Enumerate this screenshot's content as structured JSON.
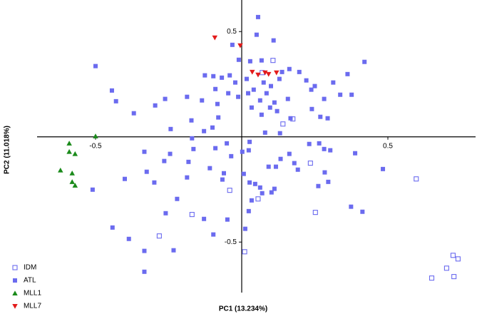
{
  "chart_data": {
    "type": "scatter",
    "x_label": "PC1 (13.234%)",
    "y_label": "PC2 (11.018%)",
    "xlim": [
      -0.7,
      0.8
    ],
    "ylim": [
      -0.74,
      0.65
    ],
    "xticks": [
      -0.5,
      0.5
    ],
    "yticks": [
      -0.5,
      0.5
    ],
    "axes_cross_at_zero": true,
    "legend": "bottom-left",
    "series": [
      {
        "name": "IDM",
        "color": "#6b6bef",
        "marker": "square-open",
        "x": [
          0.107,
          0.175,
          0.141,
          0.07,
          0.235,
          -0.041,
          0.056,
          0.252,
          0.597,
          -0.17,
          -0.282,
          0.01,
          0.723,
          0.74,
          0.701,
          0.726,
          0.65
        ],
        "y": [
          0.363,
          0.085,
          0.061,
          0.305,
          -0.125,
          -0.254,
          -0.295,
          -0.359,
          -0.2,
          -0.369,
          -0.471,
          -0.546,
          -0.563,
          -0.58,
          -0.624,
          -0.664,
          -0.671
        ]
      },
      {
        "name": "ATL",
        "color": "#6b6bef",
        "marker": "square",
        "x": [
          0.056,
          0.051,
          -0.032,
          0.109,
          0.068,
          -0.5,
          0.029,
          -0.01,
          -0.041,
          -0.068,
          -0.126,
          -0.097,
          -0.09,
          -0.022,
          0.017,
          0.022,
          0.041,
          0.075,
          0.1,
          0.085,
          0.129,
          0.138,
          0.163,
          0.197,
          0.221,
          0.238,
          0.25,
          0.313,
          0.362,
          0.42,
          0.337,
          0.376,
          0.282,
          0.158,
          0.112,
          0.063,
          0.034,
          -0.012,
          -0.046,
          -0.083,
          -0.136,
          -0.187,
          -0.262,
          -0.296,
          -0.369,
          -0.43,
          -0.444,
          -0.243,
          -0.172,
          -0.129,
          -0.08,
          -0.1,
          0.068,
          0.097,
          0.121,
          0.167,
          0.269,
          0.294,
          0.24,
          0.08,
          0.131,
          0.027,
          -0.051,
          0.024,
          0.002,
          -0.036,
          -0.09,
          -0.17,
          -0.165,
          -0.245,
          -0.333,
          -0.265,
          -0.325,
          -0.299,
          -0.4,
          -0.51,
          -0.182,
          -0.187,
          -0.109,
          -0.061,
          -0.066,
          0.007,
          0.027,
          0.046,
          0.092,
          0.117,
          0.133,
          0.163,
          0.18,
          0.192,
          0.231,
          0.265,
          0.282,
          0.303,
          0.388,
          0.483,
          0.284,
          0.296,
          0.262,
          0.112,
          0.063,
          0.07,
          0.034,
          0.102,
          0.024,
          -0.049,
          -0.129,
          -0.221,
          -0.26,
          0.374,
          0.413,
          -0.097,
          -0.442,
          -0.386,
          -0.333,
          -0.233,
          0.012,
          -0.333
        ],
        "y": [
          0.569,
          0.485,
          0.437,
          0.458,
          0.363,
          0.336,
          0.359,
          0.366,
          0.292,
          0.281,
          0.292,
          0.288,
          0.227,
          0.258,
          0.275,
          0.207,
          0.224,
          0.258,
          0.241,
          0.207,
          0.275,
          0.308,
          0.322,
          0.308,
          0.268,
          0.224,
          0.241,
          0.258,
          0.298,
          0.356,
          0.2,
          0.2,
          0.18,
          0.18,
          0.163,
          0.173,
          0.139,
          0.19,
          0.207,
          0.156,
          0.173,
          0.19,
          0.18,
          0.149,
          0.112,
          0.169,
          0.22,
          0.037,
          0.078,
          0.027,
          0.092,
          0.044,
          0.105,
          0.139,
          0.122,
          0.088,
          0.095,
          0.088,
          0.132,
          0.02,
          0.017,
          -0.024,
          -0.031,
          -0.064,
          -0.071,
          -0.092,
          -0.054,
          -0.007,
          -0.058,
          -0.081,
          -0.071,
          -0.115,
          -0.166,
          -0.217,
          -0.2,
          -0.251,
          -0.119,
          -0.193,
          -0.149,
          -0.173,
          -0.203,
          -0.176,
          -0.217,
          -0.224,
          -0.142,
          -0.142,
          -0.105,
          -0.081,
          -0.125,
          -0.156,
          -0.034,
          -0.031,
          -0.058,
          -0.064,
          -0.078,
          -0.153,
          -0.169,
          -0.214,
          -0.234,
          -0.247,
          -0.241,
          -0.268,
          -0.302,
          -0.264,
          -0.353,
          -0.393,
          -0.39,
          -0.295,
          -0.363,
          -0.332,
          -0.356,
          -0.464,
          -0.431,
          -0.485,
          -0.542,
          -0.539,
          -0.437,
          -0.641
        ]
      },
      {
        "name": "MLL1",
        "color": "#1a8a1a",
        "marker": "triangle-up",
        "x": [
          -0.5,
          -0.59,
          -0.59,
          -0.57,
          -0.62,
          -0.58,
          -0.58,
          -0.57
        ],
        "y": [
          0.003,
          -0.031,
          -0.071,
          -0.081,
          -0.159,
          -0.173,
          -0.214,
          -0.231
        ]
      },
      {
        "name": "MLL7",
        "color": "#e31b1b",
        "marker": "triangle-down",
        "x": [
          -0.092,
          -0.005,
          0.036,
          0.056,
          0.08,
          0.092,
          0.119
        ],
        "y": [
          0.471,
          0.434,
          0.308,
          0.295,
          0.305,
          0.298,
          0.305
        ]
      }
    ]
  }
}
